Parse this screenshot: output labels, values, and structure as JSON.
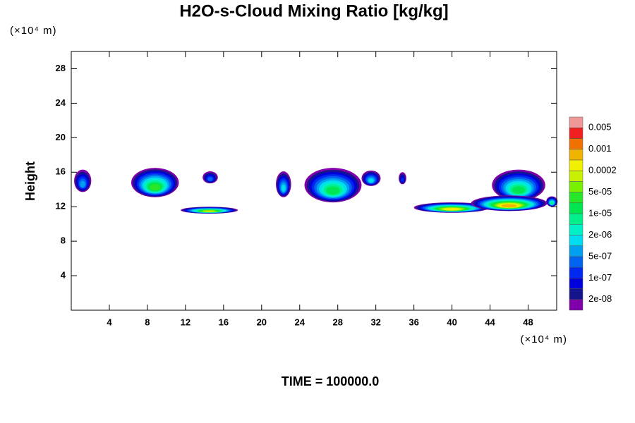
{
  "chart_data": {
    "type": "contour",
    "title": "H2O-s-Cloud Mixing Ratio [kg/kg]",
    "y_label": "Height",
    "x_unit": "(×10⁴ m)",
    "y_unit": "(×10⁴ m)",
    "footer": "TIME = 100000.0",
    "xlim": [
      0,
      51
    ],
    "ylim": [
      0,
      30
    ],
    "xticks": [
      4,
      8,
      12,
      16,
      20,
      24,
      28,
      32,
      36,
      40,
      44,
      48
    ],
    "yticks": [
      4,
      8,
      12,
      16,
      20,
      24,
      28
    ],
    "colors": [
      "#7f00a8",
      "#14148c",
      "#0000dc",
      "#0028f0",
      "#0064f0",
      "#00a0f0",
      "#00dcf0",
      "#00f0c8",
      "#00f08c",
      "#00e650",
      "#28e628",
      "#78f000",
      "#c8f000",
      "#f0f000",
      "#f0b400",
      "#f07000",
      "#f02020",
      "#f09898"
    ],
    "levels": [
      {
        "value": 2e-08,
        "label": "2e-08"
      },
      {
        "value": 1e-07,
        "label": "1e-07"
      },
      {
        "value": 5e-07,
        "label": "5e-07"
      },
      {
        "value": 2e-06,
        "label": "2e-06"
      },
      {
        "value": 1e-05,
        "label": "1e-05"
      },
      {
        "value": 5e-05,
        "label": "5e-05"
      },
      0.0002,
      0.001,
      0.005
    ],
    "clouds": [
      {
        "x": 1.2,
        "y": 15.0,
        "rx": 0.9,
        "ry": 1.3,
        "peak": 5
      },
      {
        "x": 8.8,
        "y": 14.8,
        "rx": 2.5,
        "ry": 1.7,
        "peak": 10
      },
      {
        "x": 14.6,
        "y": 15.4,
        "rx": 0.8,
        "ry": 0.7,
        "peak": 4
      },
      {
        "x": 22.3,
        "y": 14.6,
        "rx": 0.8,
        "ry": 1.5,
        "peak": 6
      },
      {
        "x": 27.5,
        "y": 14.5,
        "rx": 3.0,
        "ry": 2.0,
        "peak": 9
      },
      {
        "x": 31.5,
        "y": 15.3,
        "rx": 1.0,
        "ry": 0.9,
        "peak": 6
      },
      {
        "x": 34.8,
        "y": 15.3,
        "rx": 0.4,
        "ry": 0.7,
        "peak": 3
      },
      {
        "x": 47.0,
        "y": 14.5,
        "rx": 2.8,
        "ry": 1.8,
        "peak": 9
      },
      {
        "x": 50.5,
        "y": 12.6,
        "rx": 0.6,
        "ry": 0.6,
        "peak": 8
      },
      {
        "x": 14.5,
        "y": 11.6,
        "rx": 3.0,
        "ry": 0.4,
        "peak": 12
      },
      {
        "x": 40.0,
        "y": 11.9,
        "rx": 4.0,
        "ry": 0.6,
        "peak": 13
      },
      {
        "x": 46.0,
        "y": 12.4,
        "rx": 4.0,
        "ry": 0.9,
        "peak": 14
      }
    ]
  }
}
